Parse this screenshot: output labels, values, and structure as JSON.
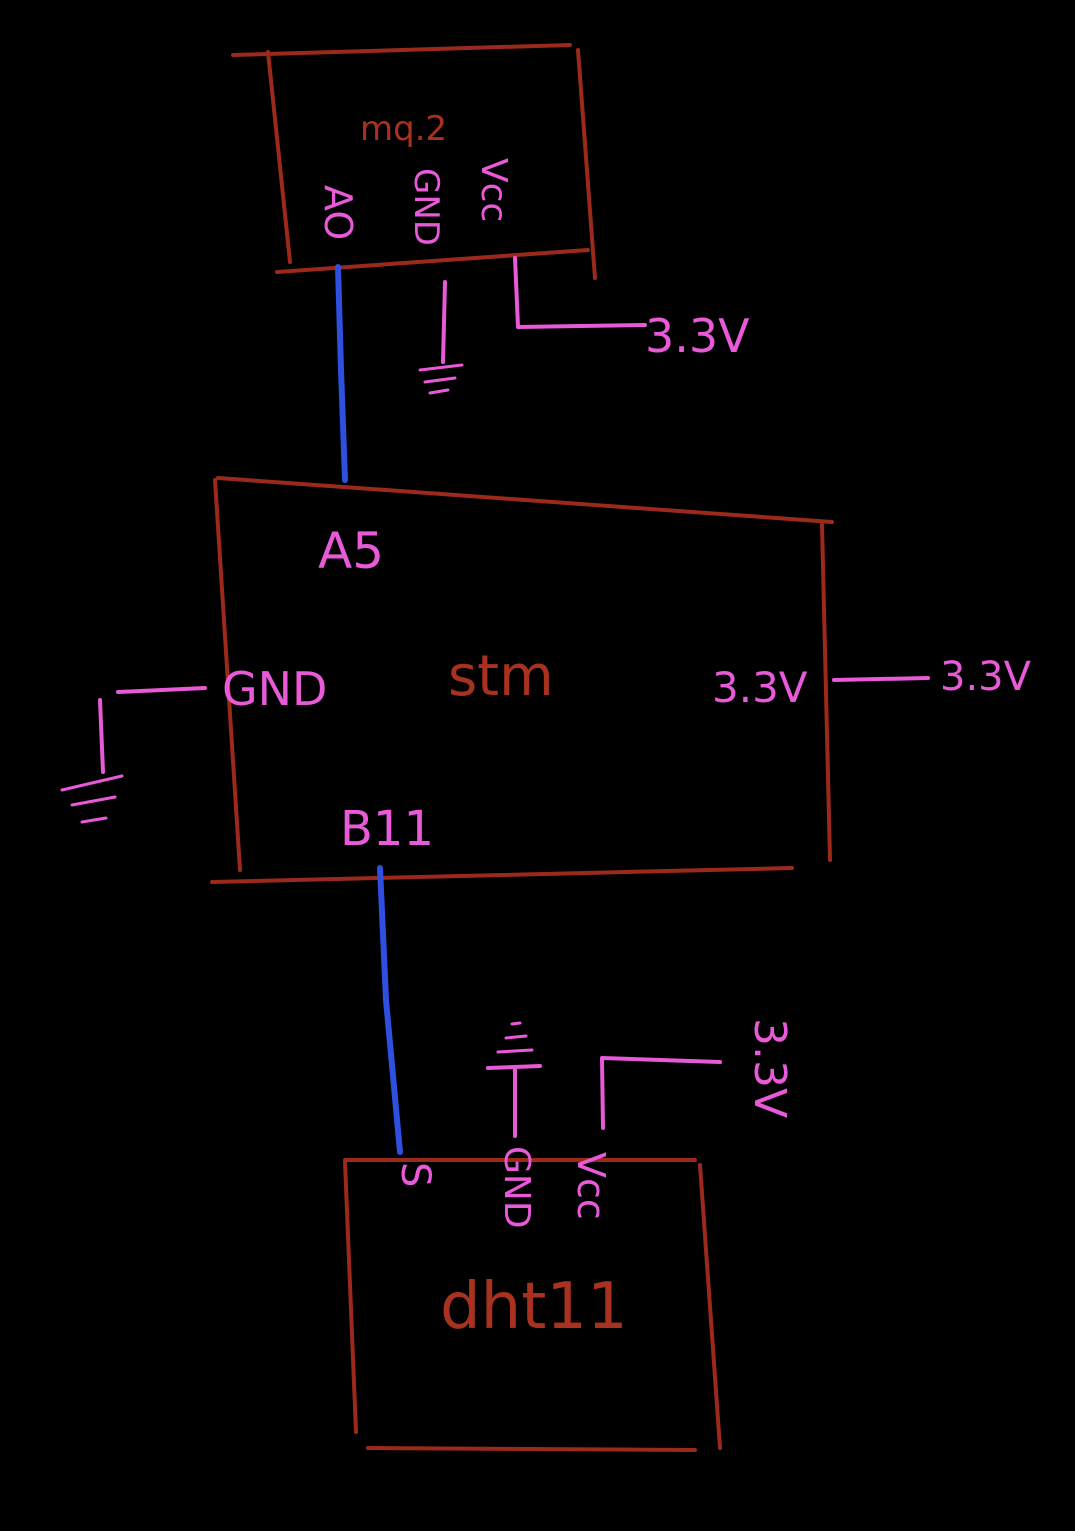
{
  "colors": {
    "background": "#000000",
    "component_outline": "#9c2a1c",
    "component_label": "#a8321f",
    "power_wire": "#e85ad8",
    "pin_label": "#e85ad8",
    "data_wire": "#2f4fe0"
  },
  "components": {
    "mq2": {
      "label": "mq.2",
      "pins": {
        "ao": "AO",
        "gnd": "GND",
        "vcc": "Vcc"
      }
    },
    "stm": {
      "label": "stm",
      "pins": {
        "a5": "A5",
        "gnd": "GND",
        "v33": "3.3V",
        "b11": "B11"
      }
    },
    "dht11": {
      "label": "dht11",
      "pins": {
        "s": "S",
        "gnd": "GND",
        "vcc": "Vcc"
      }
    }
  },
  "rails": {
    "mq2_vcc": "3.3V",
    "stm_supply": "3.3V",
    "dht11_vcc": "3.3V"
  },
  "connections": [
    {
      "from": "mq2.ao",
      "to": "stm.a5",
      "type": "data"
    },
    {
      "from": "stm.b11",
      "to": "dht11.s",
      "type": "data"
    }
  ]
}
